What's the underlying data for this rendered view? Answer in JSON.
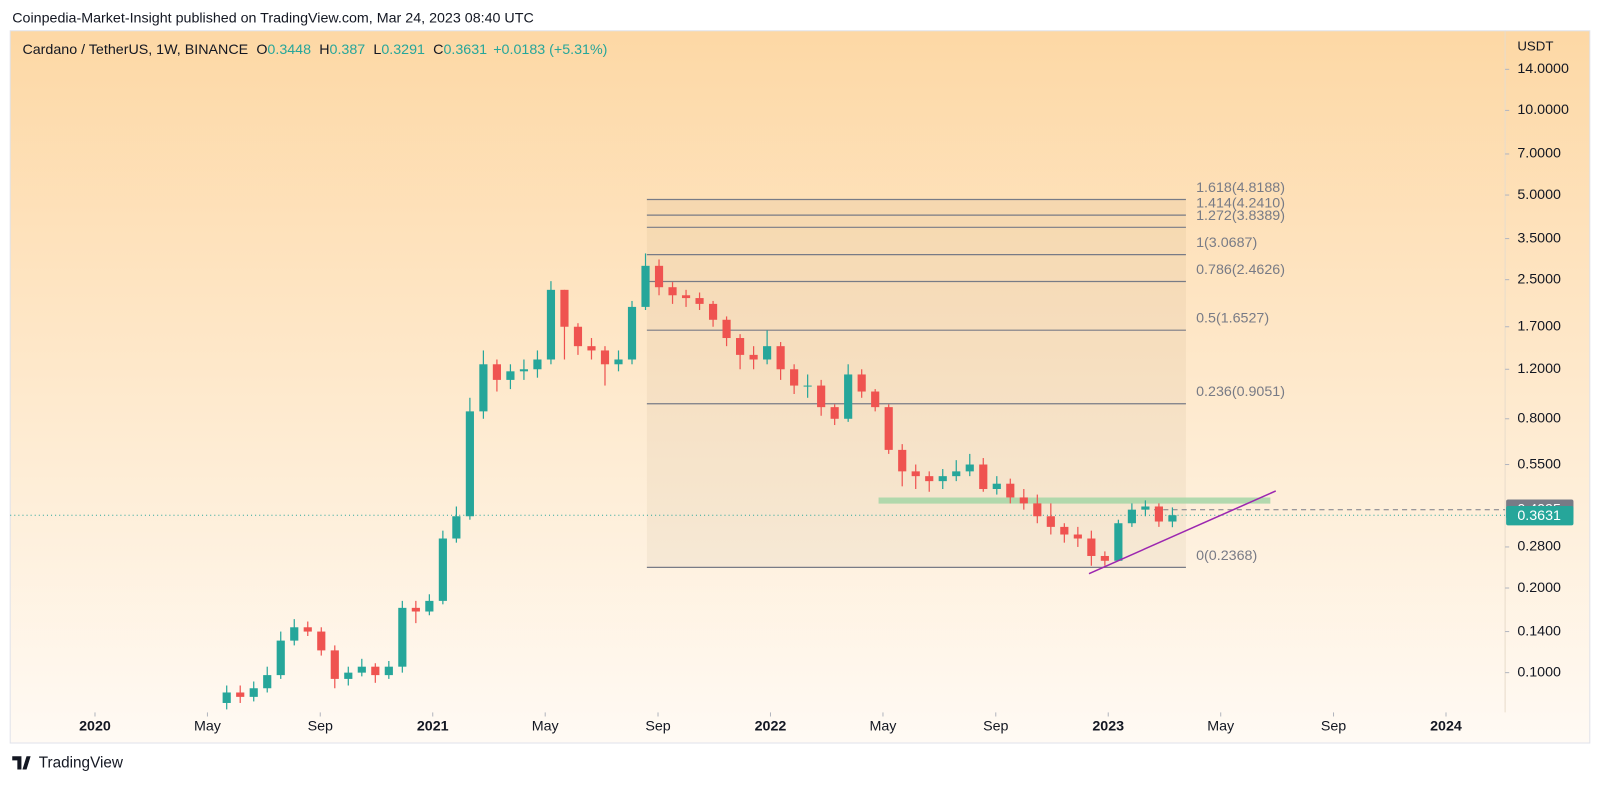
{
  "header": {
    "text": "Coinpedia-Market-Insight published on TradingView.com, Mar 24, 2023 08:40 UTC"
  },
  "footer": {
    "brand": "TradingView"
  },
  "chart_data": {
    "type": "candlestick",
    "title": "Cardano / TetherUS, 1W, BINANCE",
    "ohlc_letters": [
      "O",
      "H",
      "L",
      "C"
    ],
    "change": "+0.0183 (+5.31%)",
    "y_unit": "USDT",
    "log_scale": true,
    "up_color": "#26a69a",
    "down_color": "#ef5350",
    "x": [
      2020.39,
      2020.43,
      2020.47,
      2020.51,
      2020.55,
      2020.59,
      2020.63,
      2020.67,
      2020.71,
      2020.75,
      2020.79,
      2020.83,
      2020.87,
      2020.91,
      2020.95,
      2020.99,
      2021.03,
      2021.07,
      2021.11,
      2021.15,
      2021.19,
      2021.23,
      2021.27,
      2021.31,
      2021.35,
      2021.39,
      2021.43,
      2021.47,
      2021.51,
      2021.55,
      2021.59,
      2021.63,
      2021.67,
      2021.71,
      2021.75,
      2021.79,
      2021.83,
      2021.87,
      2021.91,
      2021.95,
      2021.99,
      2022.03,
      2022.07,
      2022.11,
      2022.15,
      2022.19,
      2022.23,
      2022.27,
      2022.31,
      2022.35,
      2022.39,
      2022.43,
      2022.47,
      2022.51,
      2022.55,
      2022.59,
      2022.63,
      2022.67,
      2022.71,
      2022.75,
      2022.79,
      2022.83,
      2022.87,
      2022.91,
      2022.95,
      2022.99,
      2023.03,
      2023.07,
      2023.11,
      2023.15,
      2023.19
    ],
    "open": [
      0.078,
      0.085,
      0.082,
      0.088,
      0.098,
      0.13,
      0.145,
      0.14,
      0.12,
      0.095,
      0.1,
      0.105,
      0.098,
      0.105,
      0.17,
      0.165,
      0.18,
      0.3,
      0.36,
      0.85,
      1.25,
      1.1,
      1.18,
      1.2,
      1.3,
      2.3,
      1.7,
      1.45,
      1.4,
      1.25,
      1.3,
      2.0,
      2.8,
      2.35,
      2.2,
      2.15,
      2.05,
      1.8,
      1.55,
      1.35,
      1.3,
      1.45,
      1.2,
      1.05,
      1.05,
      0.88,
      0.8,
      1.15,
      1.0,
      0.88,
      0.62,
      0.52,
      0.5,
      0.48,
      0.5,
      0.52,
      0.55,
      0.45,
      0.47,
      0.42,
      0.4,
      0.36,
      0.33,
      0.31,
      0.3,
      0.26,
      0.25,
      0.34,
      0.38,
      0.39,
      0.3448
    ],
    "high": [
      0.09,
      0.09,
      0.093,
      0.105,
      0.14,
      0.155,
      0.152,
      0.145,
      0.125,
      0.105,
      0.112,
      0.108,
      0.11,
      0.18,
      0.18,
      0.19,
      0.32,
      0.39,
      0.95,
      1.4,
      1.3,
      1.25,
      1.3,
      1.4,
      2.47,
      2.3,
      1.75,
      1.55,
      1.45,
      1.4,
      2.1,
      3.1,
      2.95,
      2.45,
      2.3,
      2.25,
      2.1,
      1.85,
      1.6,
      1.45,
      1.65,
      1.5,
      1.25,
      1.15,
      1.1,
      0.9,
      1.25,
      1.2,
      1.02,
      0.9,
      0.65,
      0.55,
      0.52,
      0.53,
      0.57,
      0.6,
      0.58,
      0.5,
      0.49,
      0.45,
      0.43,
      0.4,
      0.34,
      0.33,
      0.32,
      0.27,
      0.35,
      0.4,
      0.41,
      0.4,
      0.387
    ],
    "low": [
      0.074,
      0.078,
      0.079,
      0.085,
      0.095,
      0.125,
      0.135,
      0.115,
      0.088,
      0.09,
      0.097,
      0.092,
      0.095,
      0.1,
      0.15,
      0.16,
      0.175,
      0.29,
      0.35,
      0.8,
      1.0,
      1.02,
      1.1,
      1.12,
      1.25,
      1.3,
      1.35,
      1.3,
      1.05,
      1.18,
      1.25,
      1.95,
      2.2,
      2.05,
      2.0,
      1.95,
      1.7,
      1.45,
      1.2,
      1.2,
      1.25,
      1.1,
      0.98,
      0.95,
      0.82,
      0.76,
      0.78,
      0.95,
      0.85,
      0.6,
      0.46,
      0.45,
      0.44,
      0.45,
      0.48,
      0.5,
      0.44,
      0.43,
      0.4,
      0.38,
      0.34,
      0.31,
      0.29,
      0.28,
      0.24,
      0.24,
      0.25,
      0.33,
      0.36,
      0.33,
      0.3291
    ],
    "close": [
      0.085,
      0.082,
      0.088,
      0.098,
      0.13,
      0.145,
      0.14,
      0.12,
      0.095,
      0.1,
      0.105,
      0.098,
      0.105,
      0.17,
      0.165,
      0.18,
      0.3,
      0.36,
      0.85,
      1.25,
      1.1,
      1.18,
      1.2,
      1.3,
      2.3,
      1.7,
      1.45,
      1.4,
      1.25,
      1.3,
      2.0,
      2.8,
      2.35,
      2.2,
      2.15,
      2.05,
      1.8,
      1.55,
      1.35,
      1.3,
      1.45,
      1.2,
      1.05,
      1.05,
      0.88,
      0.8,
      1.15,
      1.0,
      0.88,
      0.62,
      0.52,
      0.5,
      0.48,
      0.5,
      0.52,
      0.55,
      0.45,
      0.47,
      0.42,
      0.4,
      0.36,
      0.33,
      0.31,
      0.3,
      0.26,
      0.25,
      0.34,
      0.38,
      0.39,
      0.3448,
      0.3631
    ],
    "xlim": [
      2019.749,
      2024.175
    ],
    "ylim": [
      0.0722,
      19.2
    ],
    "xticks": [
      2020,
      {
        "value": 2020.333,
        "label": "May"
      },
      {
        "value": 2020.667,
        "label": "Sep"
      },
      2021,
      {
        "value": 2021.333,
        "label": "May"
      },
      {
        "value": 2021.667,
        "label": "Sep"
      },
      2022,
      {
        "value": 2022.333,
        "label": "May"
      },
      {
        "value": 2022.667,
        "label": "Sep"
      },
      2023,
      {
        "value": 2023.333,
        "label": "May"
      },
      {
        "value": 2023.667,
        "label": "Sep"
      },
      2024
    ],
    "yticks": [
      {
        "value": 14,
        "label": "14.0000"
      },
      {
        "value": 10,
        "label": "10.0000"
      },
      {
        "value": 7,
        "label": "7.0000"
      },
      {
        "value": 5,
        "label": "5.0000"
      },
      {
        "value": 3.5,
        "label": "3.5000"
      },
      {
        "value": 2.5,
        "label": "2.5000"
      },
      {
        "value": 1.7,
        "label": "1.7000"
      },
      {
        "value": 1.2,
        "label": "1.2000"
      },
      {
        "value": 0.8,
        "label": "0.8000"
      },
      {
        "value": 0.55,
        "label": "0.5500"
      },
      {
        "value": 0.28,
        "label": "0.2800"
      },
      {
        "value": 0.2,
        "label": "0.2000"
      },
      {
        "value": 0.14,
        "label": "0.1400"
      },
      {
        "value": 0.1,
        "label": "0.1000"
      }
    ],
    "fib_x": [
      2021.634,
      2023.23
    ],
    "fib_levels": [
      {
        "ratio": 1.618,
        "price": 4.8188,
        "label": "1.618(4.8188)"
      },
      {
        "ratio": 1.414,
        "price": 4.241,
        "label": "1.414(4.2410)"
      },
      {
        "ratio": 1.272,
        "price": 3.8389,
        "label": "1.272(3.8389)"
      },
      {
        "ratio": 1,
        "price": 3.0687,
        "label": "1(3.0687)"
      },
      {
        "ratio": 0.786,
        "price": 2.4626,
        "label": "0.786(2.4626)"
      },
      {
        "ratio": 0.5,
        "price": 1.6527,
        "label": "0.5(1.6527)"
      },
      {
        "ratio": 0.236,
        "price": 0.9051,
        "label": "0.236(0.9051)"
      },
      {
        "ratio": 0,
        "price": 0.2368,
        "label": "0(0.2368)"
      }
    ],
    "resistance": {
      "price": 0.4095,
      "x": [
        2022.32,
        2023.48
      ],
      "color": "#a5d6a7"
    },
    "trendline": {
      "x": [
        2022.943,
        2023.496
      ],
      "y": [
        0.225,
        0.443
      ],
      "color": "#9c27b0"
    },
    "last_price": 0.3631
  }
}
